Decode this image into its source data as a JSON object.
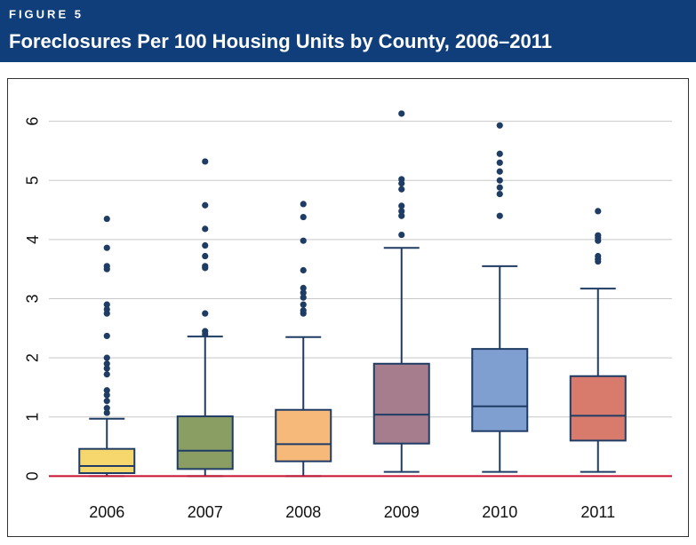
{
  "chart_data": {
    "type": "box",
    "figure_label": "FIGURE 5",
    "title": "Foreclosures Per 100 Housing Units by County, 2006–2011",
    "categories": [
      "2006",
      "2007",
      "2008",
      "2009",
      "2010",
      "2011"
    ],
    "boxes": [
      {
        "low": 0,
        "q1": 0.05,
        "median": 0.17,
        "q3": 0.46,
        "high": 0.97,
        "color": "#f5d76e",
        "outliers": [
          4.35,
          3.86,
          3.55,
          3.5,
          2.9,
          2.82,
          2.75,
          2.37,
          2.0,
          1.9,
          1.82,
          1.72,
          1.45,
          1.37,
          1.27,
          1.15,
          1.07
        ]
      },
      {
        "low": 0,
        "q1": 0.12,
        "median": 0.43,
        "q3": 1.01,
        "high": 2.36,
        "color": "#8a9e63",
        "outliers": [
          5.32,
          4.58,
          4.18,
          3.9,
          3.72,
          3.55,
          3.52,
          2.75,
          2.45,
          2.4
        ]
      },
      {
        "low": 0,
        "q1": 0.25,
        "median": 0.54,
        "q3": 1.12,
        "high": 2.35,
        "color": "#f7b97a",
        "outliers": [
          4.6,
          4.38,
          3.98,
          3.48,
          3.18,
          3.1,
          3.02,
          2.9,
          2.8,
          2.75
        ]
      },
      {
        "low": 0.07,
        "q1": 0.55,
        "median": 1.04,
        "q3": 1.9,
        "high": 3.86,
        "color": "#a57d8c",
        "outliers": [
          6.13,
          5.02,
          4.95,
          4.85,
          4.57,
          4.48,
          4.4,
          4.08
        ]
      },
      {
        "low": 0.07,
        "q1": 0.76,
        "median": 1.18,
        "q3": 2.15,
        "high": 3.55,
        "color": "#7f9fd1",
        "outliers": [
          5.93,
          5.45,
          5.3,
          5.15,
          5.0,
          4.88,
          4.77,
          4.4
        ]
      },
      {
        "low": 0.07,
        "q1": 0.6,
        "median": 1.02,
        "q3": 1.69,
        "high": 3.17,
        "color": "#d97b6c",
        "outliers": [
          4.48,
          4.07,
          4.03,
          3.98,
          3.72,
          3.67,
          3.63
        ]
      }
    ],
    "ylim": [
      -0.25,
      6.55
    ],
    "yticks": [
      0,
      1,
      2,
      3,
      4,
      5,
      6
    ],
    "grid": true,
    "hline": {
      "value": 0,
      "color": "#c8102e"
    }
  }
}
